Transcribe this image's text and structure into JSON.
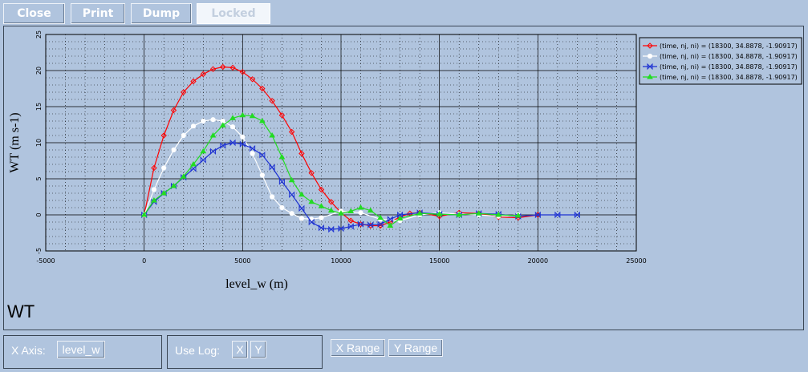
{
  "toolbar": {
    "close": "Close",
    "print": "Print",
    "dump": "Dump",
    "locked": "Locked"
  },
  "caption": "WT",
  "controls": {
    "x_axis_label": "X Axis:",
    "x_axis_value": "level_w",
    "use_log_label": "Use Log:",
    "log_x": "X",
    "log_y": "Y",
    "x_range": "X Range",
    "y_range": "Y Range"
  },
  "chart_data": {
    "type": "line",
    "xlabel": "level_w (m)",
    "ylabel": "WT (m s-1)",
    "xlim": [
      -5000,
      25000
    ],
    "ylim": [
      -5,
      25
    ],
    "xticks": [
      "-5000",
      "0",
      "5000",
      "10000",
      "15000",
      "20000",
      "25000"
    ],
    "yticks": [
      "-5",
      "0",
      "5",
      "10",
      "15",
      "20",
      "25"
    ],
    "grid": true,
    "legend_position": "top-right",
    "series": [
      {
        "name": "(time, nj, ni) = (18300, 34.8878, -1.90917)",
        "color": "#ff0000",
        "marker": "diamond",
        "x": [
          0,
          500,
          1000,
          1500,
          2000,
          2500,
          3000,
          3500,
          4000,
          4500,
          5000,
          5500,
          6000,
          6500,
          7000,
          7500,
          8000,
          8500,
          9000,
          9500,
          10000,
          10500,
          11000,
          11500,
          12000,
          12500,
          13000,
          13500,
          14000,
          15000,
          16000,
          17000,
          18000,
          19000,
          20000
        ],
        "y": [
          0,
          6.5,
          11,
          14.5,
          17,
          18.5,
          19.5,
          20.2,
          20.5,
          20.4,
          19.8,
          18.8,
          17.5,
          15.8,
          13.8,
          11.5,
          8.5,
          5.8,
          3.5,
          1.8,
          0.3,
          -0.8,
          -1.3,
          -1.5,
          -1.5,
          -1.0,
          -0.3,
          0.2,
          0.3,
          -0.2,
          0.3,
          0.2,
          -0.3,
          -0.4,
          0
        ]
      },
      {
        "name": "(time, nj, ni) = (18300, 34.8878, -1.90917)",
        "color": "#ffffff",
        "marker": "circle",
        "x": [
          0,
          500,
          1000,
          1500,
          2000,
          2500,
          3000,
          3500,
          4000,
          4500,
          5000,
          5500,
          6000,
          6500,
          7000,
          7500,
          8000,
          8500,
          9000,
          10000,
          11000,
          12000,
          13000,
          14000,
          15000,
          16000,
          17000,
          18000,
          19000
        ],
        "y": [
          0,
          3.5,
          6.5,
          9,
          11,
          12.3,
          13.0,
          13.2,
          13.0,
          12.2,
          10.8,
          8.5,
          5.5,
          2.5,
          1.0,
          0.2,
          -0.5,
          -0.6,
          -0.4,
          0.5,
          0.3,
          -0.6,
          -0.8,
          0,
          0.3,
          0.1,
          0,
          -0.2,
          0
        ]
      },
      {
        "name": "(time, nj, ni) = (18300, 34.8878, -1.90917)",
        "color": "#1e32d2",
        "marker": "bowtie",
        "x": [
          0,
          500,
          1000,
          1500,
          2000,
          2500,
          3000,
          3500,
          4000,
          4500,
          5000,
          5500,
          6000,
          6500,
          7000,
          7500,
          8000,
          8500,
          9000,
          9500,
          10000,
          10500,
          11000,
          11500,
          12000,
          12500,
          13000,
          14000,
          15000,
          16000,
          17000,
          18000,
          19000,
          20000,
          21000,
          22000
        ],
        "y": [
          0,
          1.8,
          3.0,
          4.0,
          5.2,
          6.4,
          7.6,
          8.8,
          9.6,
          10.0,
          9.8,
          9.2,
          8.3,
          6.6,
          4.6,
          2.8,
          0.9,
          -1.0,
          -1.8,
          -2.0,
          -1.9,
          -1.6,
          -1.3,
          -1.4,
          -1.3,
          -0.6,
          0,
          0.3,
          0.1,
          0,
          0.2,
          0.1,
          -0.2,
          0,
          0,
          0
        ]
      },
      {
        "name": "(time, nj, ni) = (18300, 34.8878, -1.90917)",
        "color": "#22dc22",
        "marker": "triangle",
        "x": [
          0,
          500,
          1000,
          1500,
          2000,
          2500,
          3000,
          3500,
          4000,
          4500,
          5000,
          5500,
          6000,
          6500,
          7000,
          7500,
          8000,
          8500,
          9000,
          9500,
          10000,
          10500,
          11000,
          11500,
          12000,
          12500,
          13000,
          14000,
          15000,
          16000,
          17000,
          18000,
          19000
        ],
        "y": [
          0,
          2.0,
          3.0,
          4.0,
          5.3,
          7.0,
          8.8,
          11.0,
          12.4,
          13.4,
          13.8,
          13.7,
          13.0,
          11.0,
          8.0,
          4.8,
          2.8,
          1.8,
          1.2,
          0.6,
          0.2,
          0.5,
          1.0,
          0.6,
          -0.4,
          -1.5,
          -0.5,
          0.2,
          0.1,
          0,
          0.2,
          0,
          -0.1
        ]
      }
    ]
  }
}
